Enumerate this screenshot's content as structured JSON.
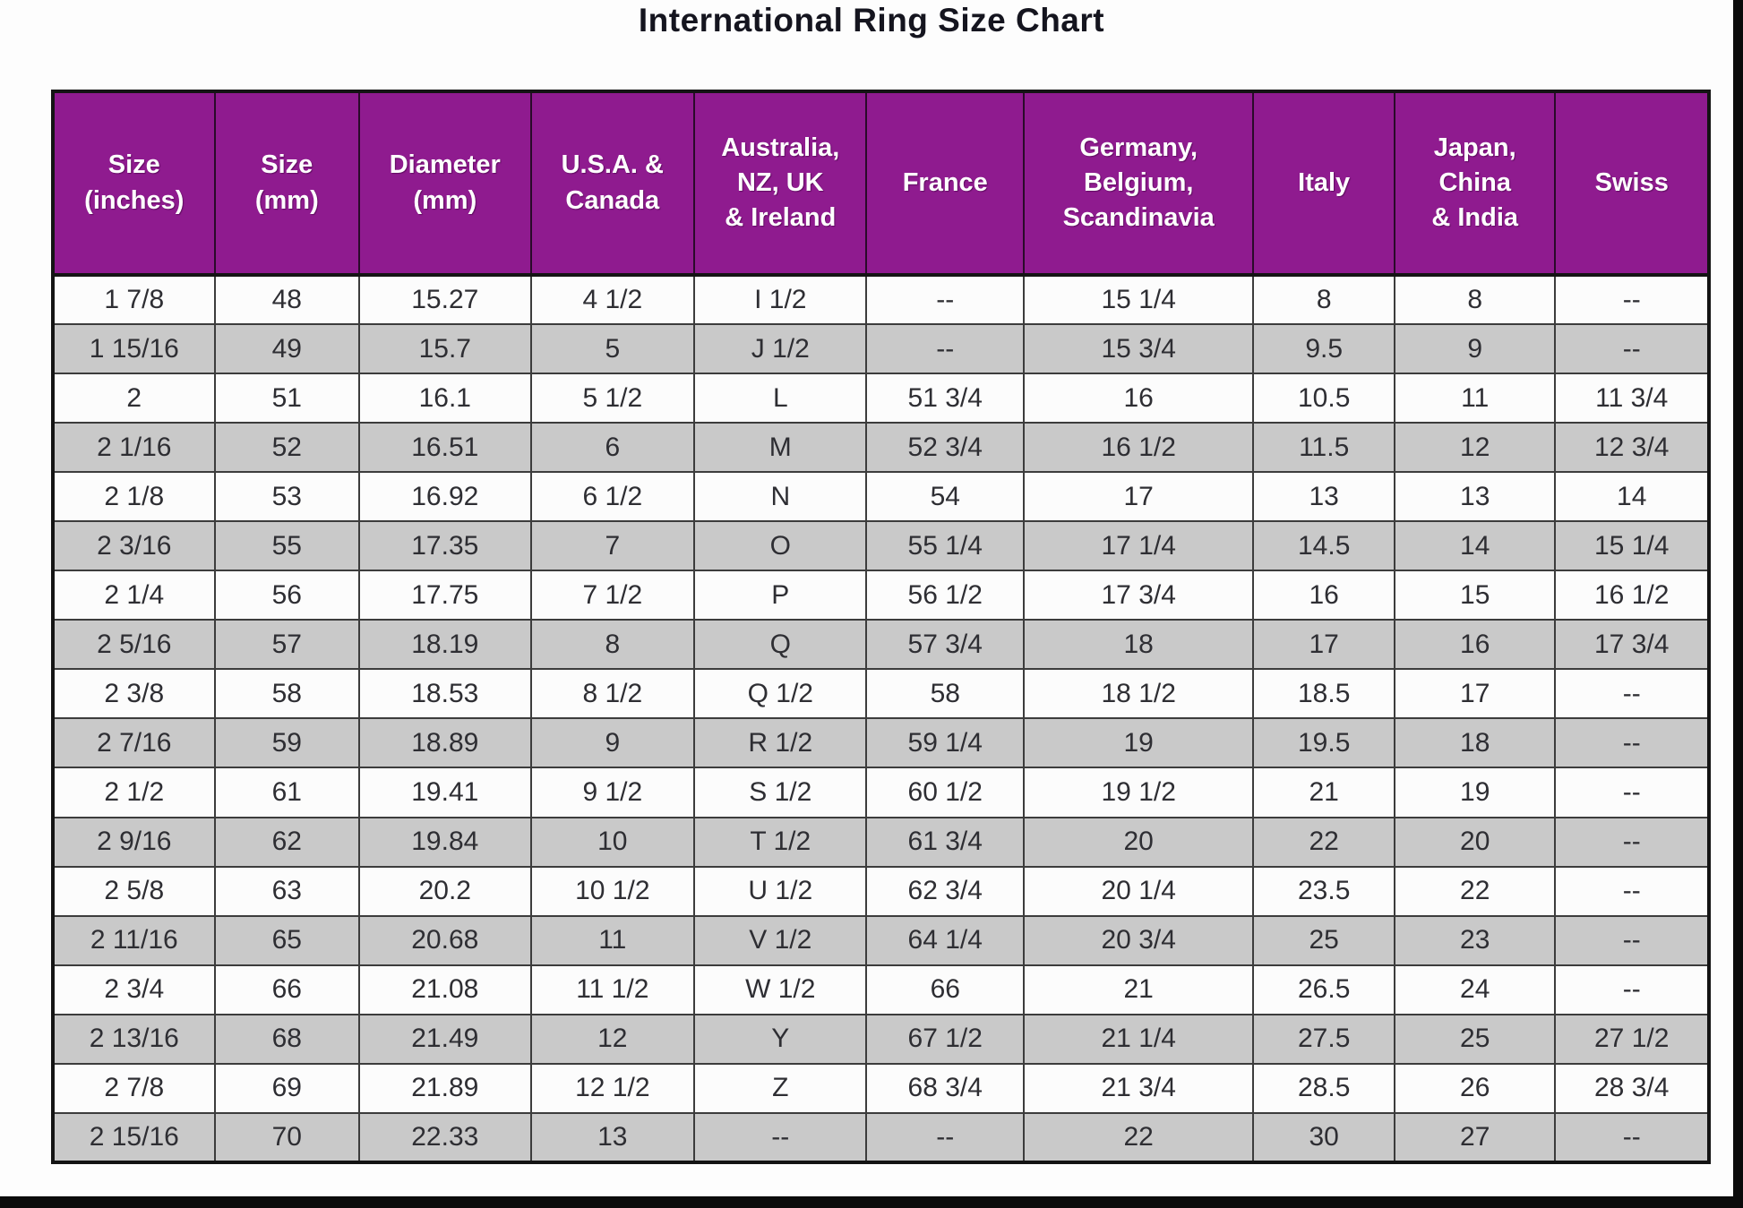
{
  "page_title": "International Ring Size Chart",
  "colors": {
    "header_bg": "#8F1B8F",
    "header_text": "#FFFFFF",
    "row_bg": "#FCFCFC",
    "row_alt_bg": "#C9C9C9",
    "grid_line": "#3C3C3C",
    "title_text": "#15151F"
  },
  "chart_data": {
    "type": "table",
    "title": "International Ring Size Chart",
    "columns": [
      "Size\n(inches)",
      "Size\n(mm)",
      "Diameter\n(mm)",
      "U.S.A. &\nCanada",
      "Australia,\nNZ, UK\n& Ireland",
      "France",
      "Germany,\nBelgium,\nScandinavia",
      "Italy",
      "Japan,\nChina\n& India",
      "Swiss"
    ],
    "rows": [
      [
        "1 7/8",
        "48",
        "15.27",
        "4 1/2",
        "I 1/2",
        "--",
        "15 1/4",
        "8",
        "8",
        "--"
      ],
      [
        "1 15/16",
        "49",
        "15.7",
        "5",
        "J 1/2",
        "--",
        "15 3/4",
        "9.5",
        "9",
        "--"
      ],
      [
        "2",
        "51",
        "16.1",
        "5 1/2",
        "L",
        "51 3/4",
        "16",
        "10.5",
        "11",
        "11 3/4"
      ],
      [
        "2 1/16",
        "52",
        "16.51",
        "6",
        "M",
        "52 3/4",
        "16 1/2",
        "11.5",
        "12",
        "12 3/4"
      ],
      [
        "2 1/8",
        "53",
        "16.92",
        "6 1/2",
        "N",
        "54",
        "17",
        "13",
        "13",
        "14"
      ],
      [
        "2 3/16",
        "55",
        "17.35",
        "7",
        "O",
        "55 1/4",
        "17 1/4",
        "14.5",
        "14",
        "15 1/4"
      ],
      [
        "2 1/4",
        "56",
        "17.75",
        "7 1/2",
        "P",
        "56 1/2",
        "17 3/4",
        "16",
        "15",
        "16 1/2"
      ],
      [
        "2 5/16",
        "57",
        "18.19",
        "8",
        "Q",
        "57 3/4",
        "18",
        "17",
        "16",
        "17 3/4"
      ],
      [
        "2 3/8",
        "58",
        "18.53",
        "8 1/2",
        "Q 1/2",
        "58",
        "18 1/2",
        "18.5",
        "17",
        "--"
      ],
      [
        "2 7/16",
        "59",
        "18.89",
        "9",
        "R 1/2",
        "59 1/4",
        "19",
        "19.5",
        "18",
        "--"
      ],
      [
        "2 1/2",
        "61",
        "19.41",
        "9 1/2",
        "S 1/2",
        "60 1/2",
        "19 1/2",
        "21",
        "19",
        "--"
      ],
      [
        "2 9/16",
        "62",
        "19.84",
        "10",
        "T 1/2",
        "61 3/4",
        "20",
        "22",
        "20",
        "--"
      ],
      [
        "2 5/8",
        "63",
        "20.2",
        "10 1/2",
        "U 1/2",
        "62 3/4",
        "20 1/4",
        "23.5",
        "22",
        "--"
      ],
      [
        "2 11/16",
        "65",
        "20.68",
        "11",
        "V 1/2",
        "64 1/4",
        "20 3/4",
        "25",
        "23",
        "--"
      ],
      [
        "2 3/4",
        "66",
        "21.08",
        "11 1/2",
        "W 1/2",
        "66",
        "21",
        "26.5",
        "24",
        "--"
      ],
      [
        "2 13/16",
        "68",
        "21.49",
        "12",
        "Y",
        "67 1/2",
        "21 1/4",
        "27.5",
        "25",
        "27 1/2"
      ],
      [
        "2 7/8",
        "69",
        "21.89",
        "12 1/2",
        "Z",
        "68 3/4",
        "21 3/4",
        "28.5",
        "26",
        "28 3/4"
      ],
      [
        "2 15/16",
        "70",
        "22.33",
        "13",
        "--",
        "--",
        "22",
        "30",
        "27",
        "--"
      ]
    ]
  }
}
